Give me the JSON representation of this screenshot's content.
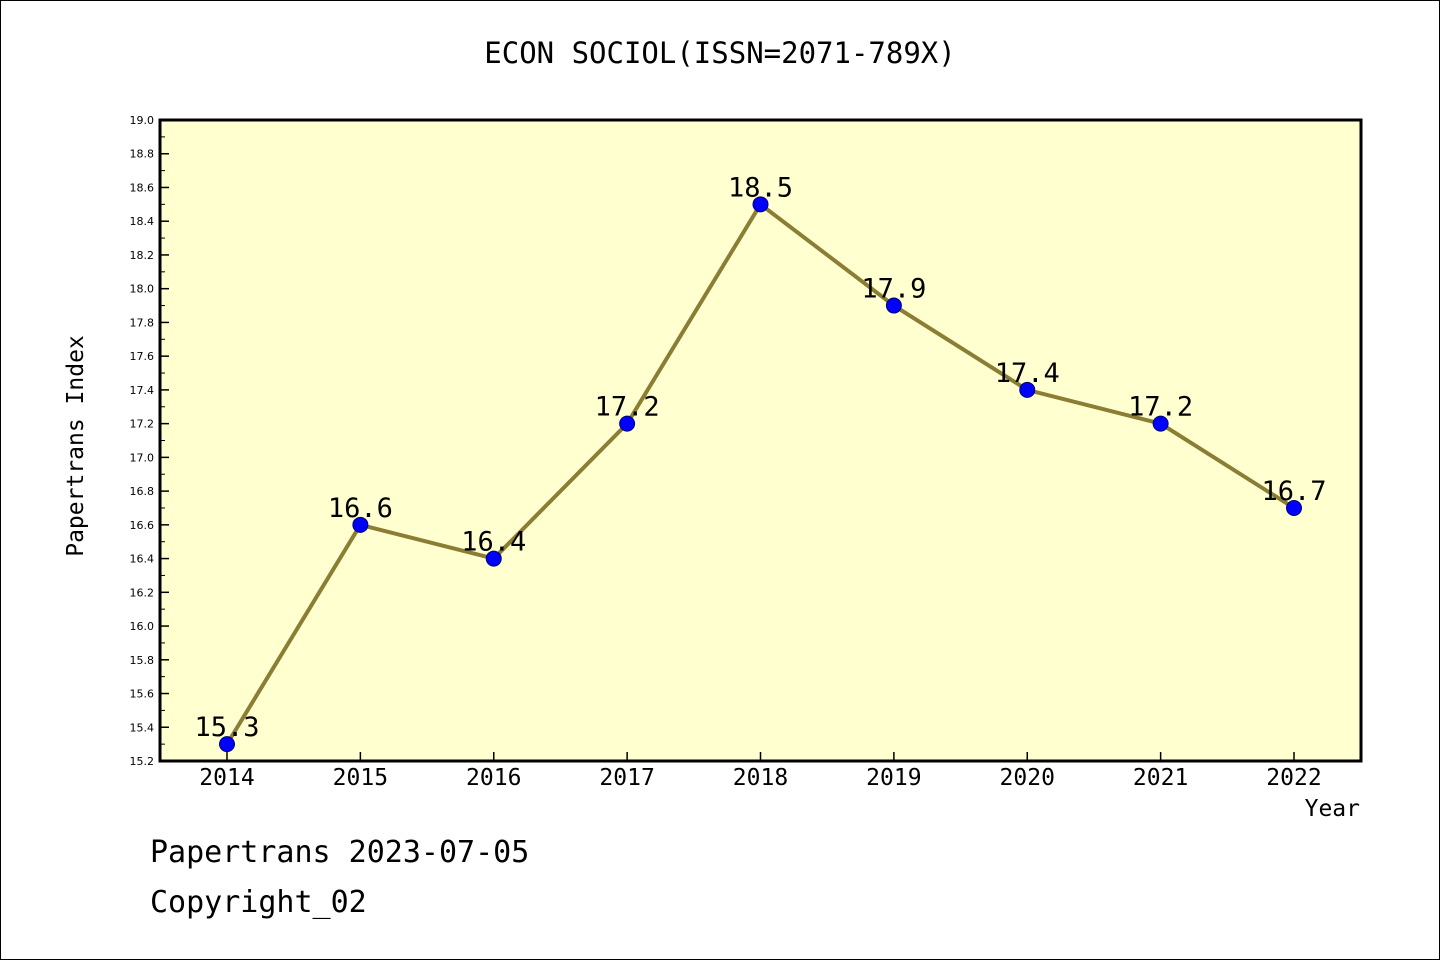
{
  "chart_data": {
    "type": "line",
    "title": "ECON SOCIOL(ISSN=2071-789X)",
    "xlabel": "Year",
    "ylabel": "Papertrans Index",
    "categories": [
      "2014",
      "2015",
      "2016",
      "2017",
      "2018",
      "2019",
      "2020",
      "2021",
      "2022"
    ],
    "series": [
      {
        "values": [
          15.3,
          16.6,
          16.4,
          17.2,
          18.5,
          17.9,
          17.4,
          17.2,
          16.7
        ],
        "data_labels": [
          "15.3",
          "16.6",
          "16.4",
          "17.2",
          "18.5",
          "17.9",
          "17.4",
          "17.2",
          "16.7"
        ],
        "line_color": "#8B7D33",
        "marker_color": "#0000FF"
      }
    ],
    "ylim": [
      15.2,
      19.0
    ],
    "y_ticks": [
      "15.2",
      "15.4",
      "15.6",
      "15.8",
      "16.0",
      "16.2",
      "16.4",
      "16.6",
      "16.8",
      "17.0",
      "17.2",
      "17.4",
      "17.6",
      "17.8",
      "18.0",
      "18.2",
      "18.4",
      "18.6",
      "18.8",
      "19.0"
    ],
    "plot_background": "#FFFFD0",
    "grid": false,
    "legend": "none"
  },
  "footer": {
    "line1": "Papertrans 2023-07-05",
    "line2": "Copyright_02"
  }
}
